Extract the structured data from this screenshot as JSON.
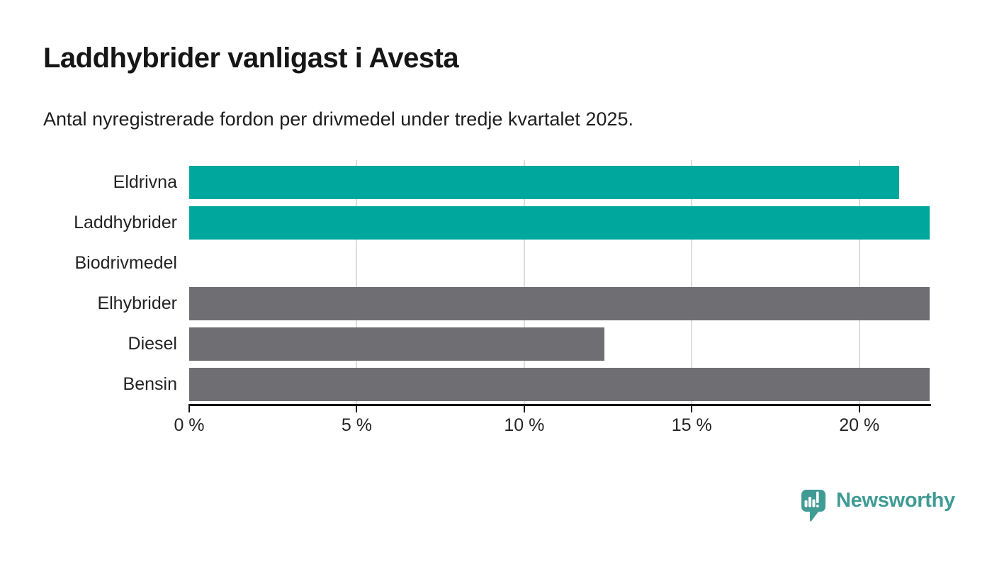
{
  "header": {
    "title": "Laddhybrider vanligast i Avesta",
    "subtitle": "Antal nyregistrerade fordon per drivmedel under tredje kvartalet 2025."
  },
  "chart_data": {
    "type": "bar",
    "orientation": "horizontal",
    "title": "Laddhybrider vanligast i Avesta",
    "subtitle": "Antal nyregistrerade fordon per drivmedel under tredje kvartalet 2025.",
    "categories": [
      "Eldrivna",
      "Laddhybrider",
      "Biodrivmedel",
      "Elhybrider",
      "Diesel",
      "Bensin"
    ],
    "values": [
      21.2,
      22.1,
      0,
      22.1,
      12.4,
      22.1
    ],
    "unit": "%",
    "bar_colors": [
      "#00a79c",
      "#00a79c",
      null,
      "#6e6e73",
      "#6e6e73",
      "#6e6e73"
    ],
    "xlabel": "",
    "ylabel": "",
    "xlim": [
      0,
      22.1
    ],
    "x_ticks": [
      {
        "value": 0,
        "label": "0 %"
      },
      {
        "value": 5,
        "label": "5 %"
      },
      {
        "value": 10,
        "label": "10 %"
      },
      {
        "value": 15,
        "label": "15 %"
      },
      {
        "value": 20,
        "label": "20 %"
      }
    ],
    "grid": true,
    "legend": false
  },
  "colors": {
    "highlight": "#00a79c",
    "neutral": "#6e6e73",
    "gridline": "#dcdcdc",
    "axis": "#141414",
    "text": "#232323",
    "brand": "#3f9b94"
  },
  "footer": {
    "brand_name": "Newsworthy"
  }
}
